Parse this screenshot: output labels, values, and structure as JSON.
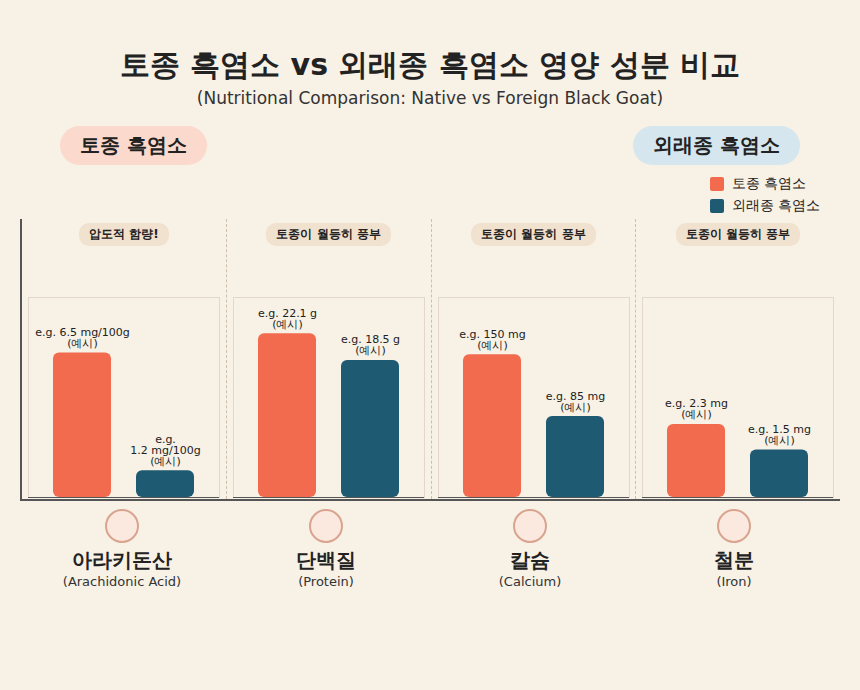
{
  "title": "토종 흑염소 vs 외래종 흑염소 영양 성분 비교",
  "subtitle": "(Nutritional Comparison: Native vs Foreign Black Goat)",
  "legend": "top-right",
  "series": [
    {
      "name": "토종 흑염소",
      "color": "#f26b4f"
    },
    {
      "name": "외래종 흑염소",
      "color": "#1f5a73"
    }
  ],
  "chart_data": [
    {
      "type": "bar",
      "category": "아라키돈산",
      "category_en": "(Arachidonic Acid)",
      "annotation": "압도적 함량!",
      "values": [
        6.5,
        1.2
      ],
      "value_labels": [
        "e.g. 6.5 mg/100g\n(예시)",
        "e.g.\n1.2 mg/100g\n(예시)"
      ],
      "ylim": [
        0,
        9
      ],
      "tick_labels": false,
      "data_labels": true
    },
    {
      "type": "bar",
      "category": "단백질",
      "category_en": "(Protein)",
      "annotation": "토종이 월등히 풍부",
      "values": [
        22.1,
        18.5
      ],
      "value_labels": [
        "e.g. 22.1 g\n(예시)",
        "e.g. 18.5 g\n(예시)"
      ],
      "ylim": [
        0,
        27
      ],
      "tick_labels": false,
      "data_labels": true
    },
    {
      "type": "bar",
      "category": "칼슘",
      "category_en": "(Calcium)",
      "annotation": "토종이 월등히 풍부",
      "values": [
        150,
        85
      ],
      "value_labels": [
        "e.g. 150 mg\n(예시)",
        "e.g. 85 mg\n(예시)"
      ],
      "ylim": [
        0,
        210
      ],
      "tick_labels": false,
      "data_labels": true
    },
    {
      "type": "bar",
      "category": "철분",
      "category_en": "(Iron)",
      "annotation": "토종이 월등히 풍부",
      "values": [
        2.3,
        1.5
      ],
      "value_labels": [
        "e.g. 2.3 mg\n(예시)",
        "e.g. 1.5 mg\n(예시)"
      ],
      "ylim": [
        0,
        6.3
      ],
      "tick_labels": false,
      "data_labels": true
    }
  ]
}
